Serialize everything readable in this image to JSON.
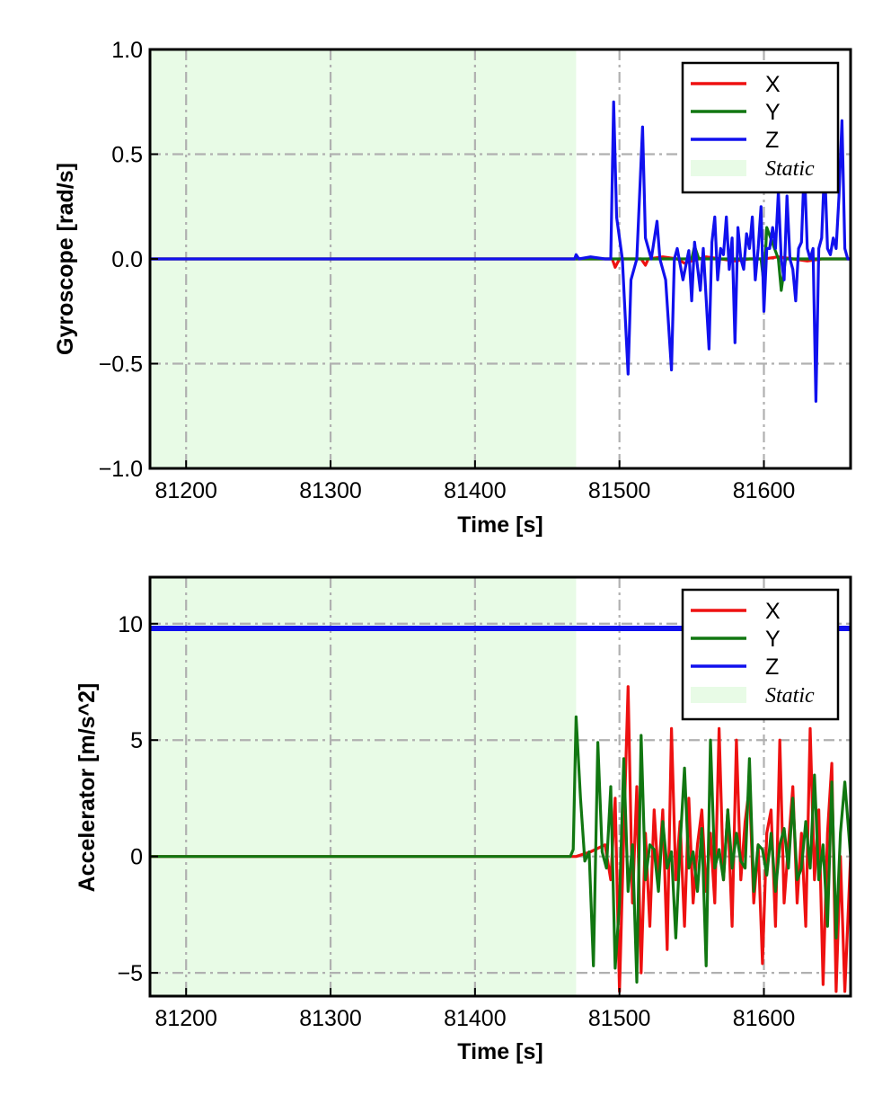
{
  "colors": {
    "x": "#ee1111",
    "y": "#117711",
    "z": "#1111ee",
    "static_fill": "#e8fbe6",
    "grid": "#b0b0b0"
  },
  "chart_data": [
    {
      "type": "line",
      "xlabel": "Time [s]",
      "ylabel": "Gyroscope [rad/s]",
      "xlim": [
        81175,
        81660
      ],
      "ylim": [
        -1.0,
        1.0
      ],
      "xticks": [
        81200,
        81300,
        81400,
        81500,
        81600
      ],
      "yticks": [
        1.0,
        0.5,
        0.0,
        -0.5,
        -1.0
      ],
      "ytick_labels": [
        "1.0",
        "0.5",
        "0.0",
        "−0.5",
        "−1.0"
      ],
      "grid": true,
      "legend_position": "top-right",
      "static_region": {
        "label": "Static",
        "x_start": 81175,
        "x_end": 81470
      },
      "series": [
        {
          "name": "X",
          "color_key": "x",
          "x": [
            81175,
            81470,
            81495,
            81497,
            81500,
            81505,
            81515,
            81518,
            81520,
            81530,
            81540,
            81545,
            81555,
            81560,
            81570,
            81580,
            81590,
            81600,
            81610,
            81620,
            81630,
            81640,
            81650,
            81660
          ],
          "y": [
            0,
            0,
            0.0,
            -0.04,
            0.0,
            0.0,
            0.0,
            -0.03,
            0.0,
            0.01,
            0.0,
            -0.02,
            0.0,
            0.01,
            0.0,
            -0.01,
            0.0,
            0.0,
            0.01,
            0.0,
            -0.01,
            0.0,
            0.0,
            0
          ]
        },
        {
          "name": "Y",
          "color_key": "y",
          "x": [
            81175,
            81470,
            81500,
            81540,
            81550,
            81552,
            81555,
            81560,
            81580,
            81598,
            81600,
            81602,
            81610,
            81612,
            81615,
            81620,
            81640,
            81660
          ],
          "y": [
            0,
            0,
            0,
            0,
            0,
            0.06,
            0,
            0,
            0,
            0,
            -0.12,
            0.15,
            0,
            -0.15,
            0,
            0,
            0,
            0
          ]
        },
        {
          "name": "Z",
          "color_key": "z",
          "x": [
            81175,
            81469,
            81470,
            81472,
            81480,
            81490,
            81494,
            81496,
            81498,
            81502,
            81506,
            81508,
            81512,
            81516,
            81518,
            81522,
            81526,
            81528,
            81532,
            81536,
            81538,
            81540,
            81544,
            81548,
            81550,
            81552,
            81556,
            81558,
            81562,
            81564,
            81566,
            81568,
            81570,
            81572,
            81574,
            81576,
            81578,
            81580,
            81582,
            81584,
            81586,
            81588,
            81590,
            81592,
            81594,
            81596,
            81598,
            81600,
            81602,
            81604,
            81606,
            81608,
            81610,
            81612,
            81614,
            81616,
            81618,
            81620,
            81622,
            81624,
            81626,
            81628,
            81630,
            81632,
            81634,
            81636,
            81638,
            81640,
            81642,
            81644,
            81646,
            81648,
            81650,
            81652,
            81654,
            81656,
            81658,
            81660
          ],
          "y": [
            0,
            0,
            0.02,
            0,
            0.01,
            0,
            0,
            0.75,
            0.2,
            0,
            -0.55,
            -0.1,
            0,
            0.63,
            0.1,
            0,
            0.18,
            0,
            -0.1,
            -0.53,
            0,
            0.05,
            -0.1,
            0.04,
            -0.2,
            0.08,
            -0.15,
            0.05,
            -0.43,
            0.08,
            0.2,
            -0.1,
            0.05,
            0.02,
            0.2,
            -0.05,
            0.1,
            -0.4,
            0.15,
            0,
            -0.05,
            0.12,
            0.05,
            0.2,
            -0.1,
            0.05,
            0.25,
            -0.25,
            0.05,
            0.05,
            0.15,
            0.05,
            0.32,
            0,
            -0.1,
            0.3,
            0,
            -0.05,
            -0.2,
            0.05,
            0.08,
            0.45,
            0.05,
            0,
            0.05,
            -0.68,
            0.05,
            0.1,
            0.45,
            0.05,
            0.02,
            0.1,
            0.05,
            0.3,
            0.66,
            0.05,
            0,
            0
          ]
        }
      ]
    },
    {
      "type": "line",
      "xlabel": "Time [s]",
      "ylabel": "Accelerator [m/s^2]",
      "xlim": [
        81175,
        81660
      ],
      "ylim": [
        -6,
        12
      ],
      "xticks": [
        81200,
        81300,
        81400,
        81500,
        81600
      ],
      "yticks": [
        10,
        5,
        0,
        -5
      ],
      "ytick_labels": [
        "10",
        "5",
        "0",
        "−5"
      ],
      "grid": true,
      "legend_position": "top-right",
      "static_region": {
        "label": "Static",
        "x_start": 81175,
        "x_end": 81470
      },
      "series": [
        {
          "name": "X",
          "color_key": "x",
          "x": [
            81175,
            81470,
            81480,
            81490,
            81494,
            81497,
            81500,
            81503,
            81506,
            81509,
            81512,
            81515,
            81518,
            81521,
            81524,
            81527,
            81530,
            81533,
            81536,
            81539,
            81542,
            81545,
            81548,
            81551,
            81554,
            81557,
            81560,
            81563,
            81566,
            81569,
            81572,
            81575,
            81578,
            81581,
            81584,
            81587,
            81590,
            81593,
            81596,
            81599,
            81602,
            81605,
            81608,
            81611,
            81614,
            81617,
            81620,
            81623,
            81626,
            81629,
            81632,
            81635,
            81638,
            81641,
            81644,
            81647,
            81650,
            81653,
            81656,
            81660
          ],
          "y": [
            0,
            0,
            0.2,
            0.5,
            -1,
            2.5,
            -5.8,
            1,
            7.3,
            -2,
            3,
            -5,
            1,
            -3,
            2,
            -1,
            2,
            -4,
            5.5,
            -1,
            1.5,
            -3,
            2.5,
            -2,
            0.5,
            2,
            -1.5,
            1,
            -2,
            5.5,
            -1,
            2,
            -3,
            5,
            -1,
            1.5,
            3,
            -2,
            0.5,
            -4.6,
            1,
            2,
            -3,
            5,
            -2,
            0.5,
            3,
            -2,
            1,
            -3,
            5.5,
            -1,
            2,
            -5.5,
            1,
            4,
            -5.8,
            0,
            -5.8,
            0
          ]
        },
        {
          "name": "Y",
          "color_key": "y",
          "x": [
            81175,
            81466,
            81468,
            81470,
            81473,
            81476,
            81479,
            81482,
            81485,
            81488,
            81491,
            81494,
            81497,
            81500,
            81503,
            81506,
            81509,
            81512,
            81515,
            81518,
            81521,
            81524,
            81527,
            81530,
            81533,
            81536,
            81539,
            81542,
            81545,
            81548,
            81551,
            81554,
            81557,
            81560,
            81563,
            81566,
            81569,
            81572,
            81575,
            81578,
            81581,
            81584,
            81587,
            81590,
            81593,
            81596,
            81599,
            81602,
            81605,
            81608,
            81611,
            81614,
            81617,
            81620,
            81623,
            81626,
            81629,
            81632,
            81635,
            81638,
            81641,
            81644,
            81647,
            81650,
            81653,
            81656,
            81660
          ],
          "y": [
            0,
            0,
            0.3,
            6,
            2.5,
            -0.2,
            0.2,
            -4.7,
            4.9,
            0.2,
            -0.5,
            3,
            -4.8,
            -2,
            4.2,
            -1.5,
            0.5,
            -5.4,
            5.2,
            -1,
            0.5,
            0.3,
            -1.5,
            1.5,
            -0.5,
            0.2,
            -3.5,
            0.5,
            3.8,
            -0.5,
            0.2,
            -1.5,
            1.2,
            -4.7,
            5,
            -0.5,
            0.3,
            -1,
            2,
            -0.5,
            1,
            -0.2,
            -0.5,
            4.2,
            -1.5,
            0.5,
            0.3,
            -0.8,
            1,
            -1.5,
            0.5,
            1.2,
            -0.5,
            2.5,
            -1,
            -0.5,
            1.5,
            -0.5,
            3.5,
            -1,
            0.5,
            -3,
            3.2,
            -3.5,
            1,
            3.2,
            0
          ]
        },
        {
          "name": "Z",
          "color_key": "z",
          "x": [
            81175,
            81660
          ],
          "y": [
            9.8,
            9.8
          ]
        }
      ]
    }
  ]
}
